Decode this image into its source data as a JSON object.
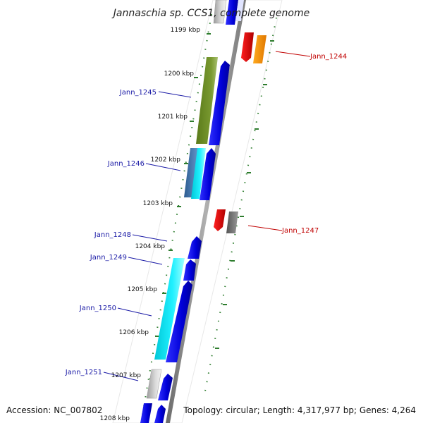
{
  "title": "Jannaschia sp. CCS1, complete genome",
  "footer": {
    "accession": "Accession: NC_007802",
    "topology": "Topology: circular; Length: 4,317,977 bp; Genes: 4,264"
  },
  "kbp_labels": [
    "1199 kbp",
    "1200 kbp",
    "1201 kbp",
    "1202 kbp",
    "1203 kbp",
    "1204 kbp",
    "1205 kbp",
    "1206 kbp",
    "1207 kbp",
    "1208 kbp"
  ],
  "gene_labels": {
    "left": [
      "Jann_1245",
      "Jann_1246",
      "Jann_1248",
      "Jann_1249",
      "Jann_1250",
      "Jann_1251"
    ],
    "right": [
      "Jann_1244",
      "Jann_1247"
    ]
  },
  "colors": {
    "blue": "#0a0ae0",
    "olive": "#6b8e23",
    "cyan": "#14dff0",
    "steel": "#4a7fc0",
    "red": "#e00000",
    "orange": "#ff9900",
    "gray": "#777777",
    "lightgray": "#bdbdbd",
    "tick": "#2e7d2e",
    "spine": "#8a8a8a",
    "label_blue": "#1a1aa6",
    "label_red": "#c00000"
  }
}
